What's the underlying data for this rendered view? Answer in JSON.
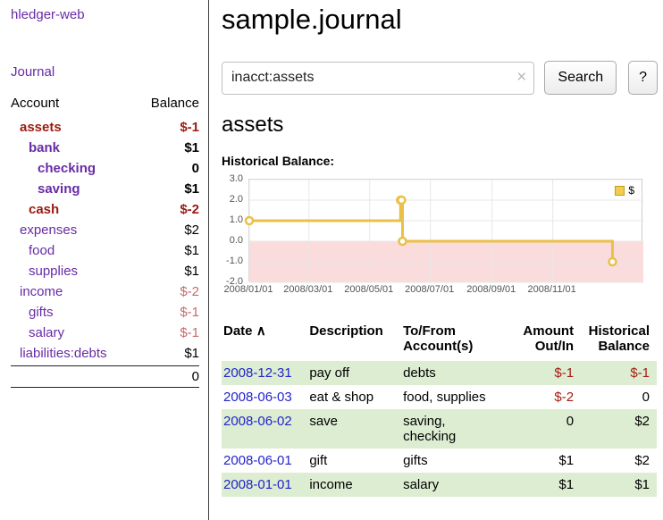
{
  "colors": {
    "purple": "#682ba6",
    "blue": "#2323cd",
    "negdark": "#9a1b10",
    "neglight": "#c76a6e",
    "tableneg": "#a51b12",
    "rowgreen": "#ddedd2"
  },
  "app": {
    "title": "hledger-web"
  },
  "sidebar": {
    "journal_link": "Journal",
    "accounts_header": {
      "account": "Account",
      "balance": "Balance"
    },
    "accounts": [
      {
        "name": "assets",
        "balance": "$-1",
        "indent": 1,
        "bold": true
      },
      {
        "name": "bank",
        "balance": "$1",
        "indent": 2,
        "bold": true
      },
      {
        "name": "checking",
        "balance": "0",
        "indent": 3,
        "bold": true
      },
      {
        "name": "saving",
        "balance": "$1",
        "indent": 3,
        "bold": true
      },
      {
        "name": "cash",
        "balance": "$-2",
        "indent": 2,
        "bold": true
      },
      {
        "name": "expenses",
        "balance": "$2",
        "indent": 1,
        "bold": false
      },
      {
        "name": "food",
        "balance": "$1",
        "indent": 2,
        "bold": false
      },
      {
        "name": "supplies",
        "balance": "$1",
        "indent": 2,
        "bold": false
      },
      {
        "name": "income",
        "balance": "$-2",
        "indent": 1,
        "bold": false
      },
      {
        "name": "gifts",
        "balance": "$-1",
        "indent": 2,
        "bold": false
      },
      {
        "name": "salary",
        "balance": "$-1",
        "indent": 2,
        "bold": false
      },
      {
        "name": "liabilities:debts",
        "balance": "$1",
        "indent": 1,
        "bold": false
      }
    ],
    "total": "0"
  },
  "main": {
    "title": "sample.journal",
    "search": {
      "value": "inacct:assets",
      "clear_icon": "×",
      "button_label": "Search",
      "help_label": "?"
    },
    "account_heading": "assets",
    "chart_heading": "Historical Balance:"
  },
  "chart_data": {
    "type": "line",
    "title": "Historical Balance",
    "style": "step",
    "series": [
      {
        "name": "$",
        "color": "#e9c048",
        "points": [
          {
            "x": "2008-01-01",
            "y": 1
          },
          {
            "x": "2008-06-01",
            "y": 2
          },
          {
            "x": "2008-06-02",
            "y": 2
          },
          {
            "x": "2008-06-03",
            "y": 0
          },
          {
            "x": "2008-12-31",
            "y": -1
          }
        ]
      }
    ],
    "ylim": [
      -2,
      3
    ],
    "yticks": [
      "3.0",
      "2.0",
      "1.0",
      "0.0",
      "-1.0",
      "-2.0"
    ],
    "xlim": [
      "2008-01-01",
      "2009-01-31"
    ],
    "xticks": [
      {
        "label": "2008/01/01",
        "date": "2008-01-01"
      },
      {
        "label": "2008/03/01",
        "date": "2008-03-01"
      },
      {
        "label": "2008/05/01",
        "date": "2008-05-01"
      },
      {
        "label": "2008/07/01",
        "date": "2008-07-01"
      },
      {
        "label": "2008/09/01",
        "date": "2008-09-01"
      },
      {
        "label": "2008/11/01",
        "date": "2008-11-01"
      }
    ],
    "legend": {
      "label": "$",
      "position": "top-right"
    },
    "negative_region_color": "#fbdcdc",
    "grid": true
  },
  "register": {
    "headers": {
      "date": "Date",
      "date_sort_icon": "∧",
      "description": "Description",
      "accounts": "To/From\nAccount(s)",
      "amount": "Amount\nOut/In",
      "balance": "Historical\nBalance"
    },
    "rows": [
      {
        "date": "2008-12-31",
        "description": "pay off",
        "accounts": "debts",
        "amount": "$-1",
        "balance": "$-1"
      },
      {
        "date": "2008-06-03",
        "description": "eat & shop",
        "accounts": "food, supplies",
        "amount": "$-2",
        "balance": "0"
      },
      {
        "date": "2008-06-02",
        "description": "save",
        "accounts": "saving,\nchecking",
        "amount": "0",
        "balance": "$2"
      },
      {
        "date": "2008-06-01",
        "description": "gift",
        "accounts": "gifts",
        "amount": "$1",
        "balance": "$2"
      },
      {
        "date": "2008-01-01",
        "description": "income",
        "accounts": "salary",
        "amount": "$1",
        "balance": "$1"
      }
    ]
  }
}
